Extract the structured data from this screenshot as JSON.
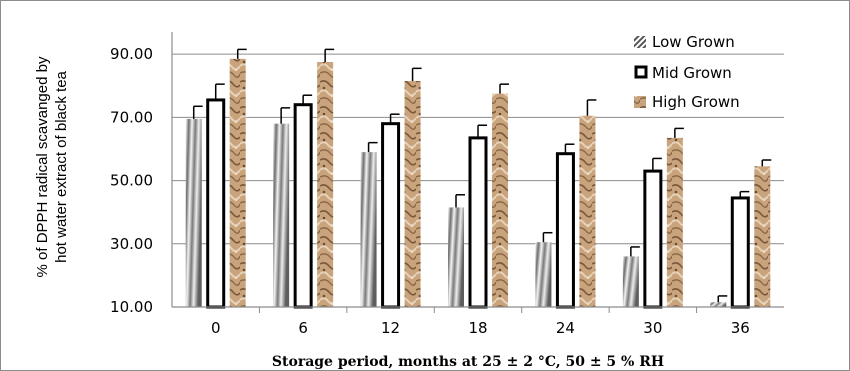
{
  "chart_data": {
    "type": "bar",
    "categories": [
      "0",
      "6",
      "12",
      "18",
      "24",
      "30",
      "36"
    ],
    "series": [
      {
        "name": "Low Grown",
        "values": [
          69.5,
          68.0,
          59.0,
          41.5,
          30.5,
          26.0,
          11.5
        ],
        "errors": [
          4.0,
          5.0,
          3.0,
          4.0,
          3.0,
          3.0,
          2.0
        ]
      },
      {
        "name": "Mid Grown",
        "values": [
          75.5,
          74.0,
          68.0,
          63.5,
          58.5,
          53.0,
          44.5
        ],
        "errors": [
          5.0,
          3.0,
          3.0,
          4.0,
          3.0,
          4.0,
          2.0
        ]
      },
      {
        "name": "High Grown",
        "values": [
          88.5,
          87.5,
          81.5,
          77.5,
          70.5,
          63.5,
          54.5
        ],
        "errors": [
          3.0,
          4.0,
          4.0,
          3.0,
          5.0,
          3.0,
          2.0
        ]
      }
    ],
    "y_ticks": [
      "10.00",
      "30.00",
      "50.00",
      "70.00",
      "90.00"
    ],
    "ylim": [
      10,
      97
    ],
    "ylabel_line1": "% of DPPH radical scavanged by",
    "ylabel_line2": "hot water extract of black tea",
    "xlabel": "Storage period, months at 25 ± 2 °C, 50 ± 5 % RH",
    "grid": "horizontal",
    "legend_position": "top-right",
    "colors": {
      "low": "#9a9a9a",
      "mid": "#000000",
      "high": "#c9a37c",
      "grid": "#8c8c8c"
    }
  }
}
